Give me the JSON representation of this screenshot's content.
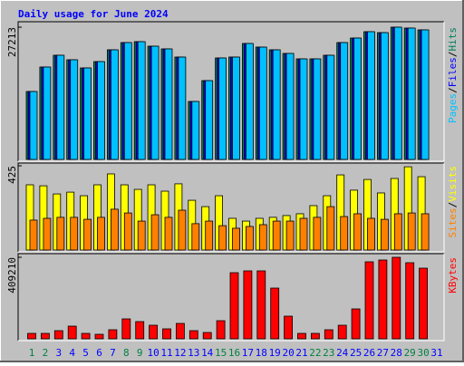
{
  "chart_data": [
    {
      "type": "bar",
      "title": "Daily usage for June 2024",
      "legend_separator": "/",
      "categories": [
        "1",
        "2",
        "3",
        "4",
        "5",
        "6",
        "7",
        "8",
        "9",
        "10",
        "11",
        "12",
        "13",
        "14",
        "15",
        "16",
        "17",
        "18",
        "19",
        "20",
        "21",
        "22",
        "23",
        "24",
        "25",
        "26",
        "27",
        "28",
        "29",
        "30",
        "31"
      ],
      "category_label_colors": [
        "#008040",
        "#008040",
        "#0000ff",
        "#0000ff",
        "#0000ff",
        "#0000ff",
        "#0000ff",
        "#008040",
        "#008040",
        "#0000ff",
        "#0000ff",
        "#0000ff",
        "#0000ff",
        "#0000ff",
        "#008040",
        "#008040",
        "#0000ff",
        "#0000ff",
        "#0000ff",
        "#0000ff",
        "#0000ff",
        "#008040",
        "#008040",
        "#0000ff",
        "#0000ff",
        "#0000ff",
        "#0000ff",
        "#0000ff",
        "#008040",
        "#008040",
        "#0000ff"
      ],
      "ylim": [
        0,
        27213
      ],
      "yticks": [
        27213
      ],
      "series": [
        {
          "name": "Hits",
          "color": "#00805c",
          "values": [
            13979,
            19012,
            21435,
            20503,
            18825,
            20130,
            22553,
            24044,
            24231,
            23299,
            22740,
            21062,
            11929,
            16216,
            20876,
            21062,
            23858,
            23112,
            22553,
            21808,
            20689,
            20689,
            21435,
            24044,
            24976,
            26281,
            26094,
            27213,
            27027,
            26654,
            null
          ]
        },
        {
          "name": "Files",
          "color": "#0000ff",
          "values": [
            13979,
            19012,
            21435,
            20503,
            18825,
            20130,
            22553,
            24044,
            24231,
            23299,
            22740,
            21062,
            11929,
            16216,
            20876,
            21062,
            23858,
            23112,
            22553,
            21808,
            20689,
            20689,
            21435,
            24044,
            24976,
            26281,
            26094,
            27213,
            27027,
            26654,
            null
          ]
        },
        {
          "name": "Pages",
          "color": "#00c0ff",
          "values": [
            13979,
            19012,
            21435,
            20503,
            18825,
            20130,
            22553,
            24044,
            24231,
            23299,
            22740,
            21062,
            11929,
            16216,
            20876,
            21062,
            23858,
            23112,
            22553,
            21808,
            20689,
            20689,
            21435,
            24044,
            24976,
            26281,
            26094,
            27213,
            27027,
            26654,
            null
          ]
        }
      ]
    },
    {
      "type": "bar",
      "ylim": [
        0,
        425
      ],
      "yticks": [
        425
      ],
      "series": [
        {
          "name": "Visits",
          "color": "#ffff00",
          "values": [
            329,
            324,
            283,
            292,
            274,
            329,
            384,
            329,
            306,
            329,
            297,
            334,
            251,
            219,
            274,
            160,
            146,
            160,
            165,
            174,
            183,
            224,
            274,
            379,
            302,
            356,
            288,
            361,
            420,
            370,
            null
          ]
        },
        {
          "name": "Sites",
          "color": "#ff8000",
          "values": [
            151,
            160,
            165,
            165,
            155,
            165,
            206,
            187,
            146,
            178,
            165,
            201,
            133,
            146,
            123,
            110,
            119,
            128,
            146,
            146,
            160,
            165,
            219,
            169,
            183,
            160,
            155,
            183,
            187,
            183,
            null
          ]
        }
      ]
    },
    {
      "type": "bar",
      "ylim": [
        0,
        409210
      ],
      "yticks": [
        409210
      ],
      "series": [
        {
          "name": "KBytes",
          "color": "#ff0000",
          "values": [
            27282,
            27282,
            40923,
            63658,
            27282,
            22735,
            45470,
            100034,
            86393,
            68205,
            50017,
            77299,
            40923,
            31829,
            90940,
            331931,
            341025,
            341025,
            254632,
            113675,
            27282,
            27282,
            45470,
            68205,
            150051,
            386495,
            395589,
            409210,
            381948,
            354666,
            null
          ]
        }
      ]
    }
  ]
}
